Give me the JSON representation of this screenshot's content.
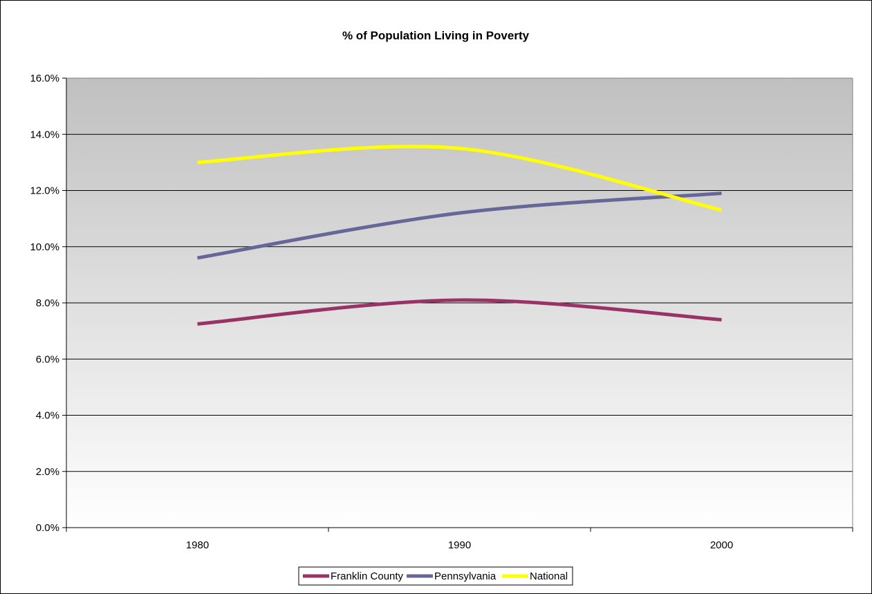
{
  "chart_data": {
    "type": "line",
    "title": "% of Population Living in Poverty",
    "xlabel": "",
    "ylabel": "",
    "categories": [
      "1980",
      "1990",
      "2000"
    ],
    "ylim": [
      0,
      16
    ],
    "yticks": [
      "0.0%",
      "2.0%",
      "4.0%",
      "6.0%",
      "8.0%",
      "10.0%",
      "12.0%",
      "14.0%",
      "16.0%"
    ],
    "grid": true,
    "smoothed": true,
    "legend_position": "bottom",
    "series": [
      {
        "name": "Franklin County",
        "values": [
          7.25,
          8.1,
          7.4
        ],
        "color": "#993366"
      },
      {
        "name": "Pennsylvania",
        "values": [
          9.6,
          11.2,
          11.9
        ],
        "color": "#666699"
      },
      {
        "name": "National",
        "values": [
          13.0,
          13.5,
          11.3
        ],
        "color": "#ffff00"
      }
    ],
    "plot_background": {
      "top": "#c0c0c0",
      "bottom": "#ffffff"
    }
  }
}
